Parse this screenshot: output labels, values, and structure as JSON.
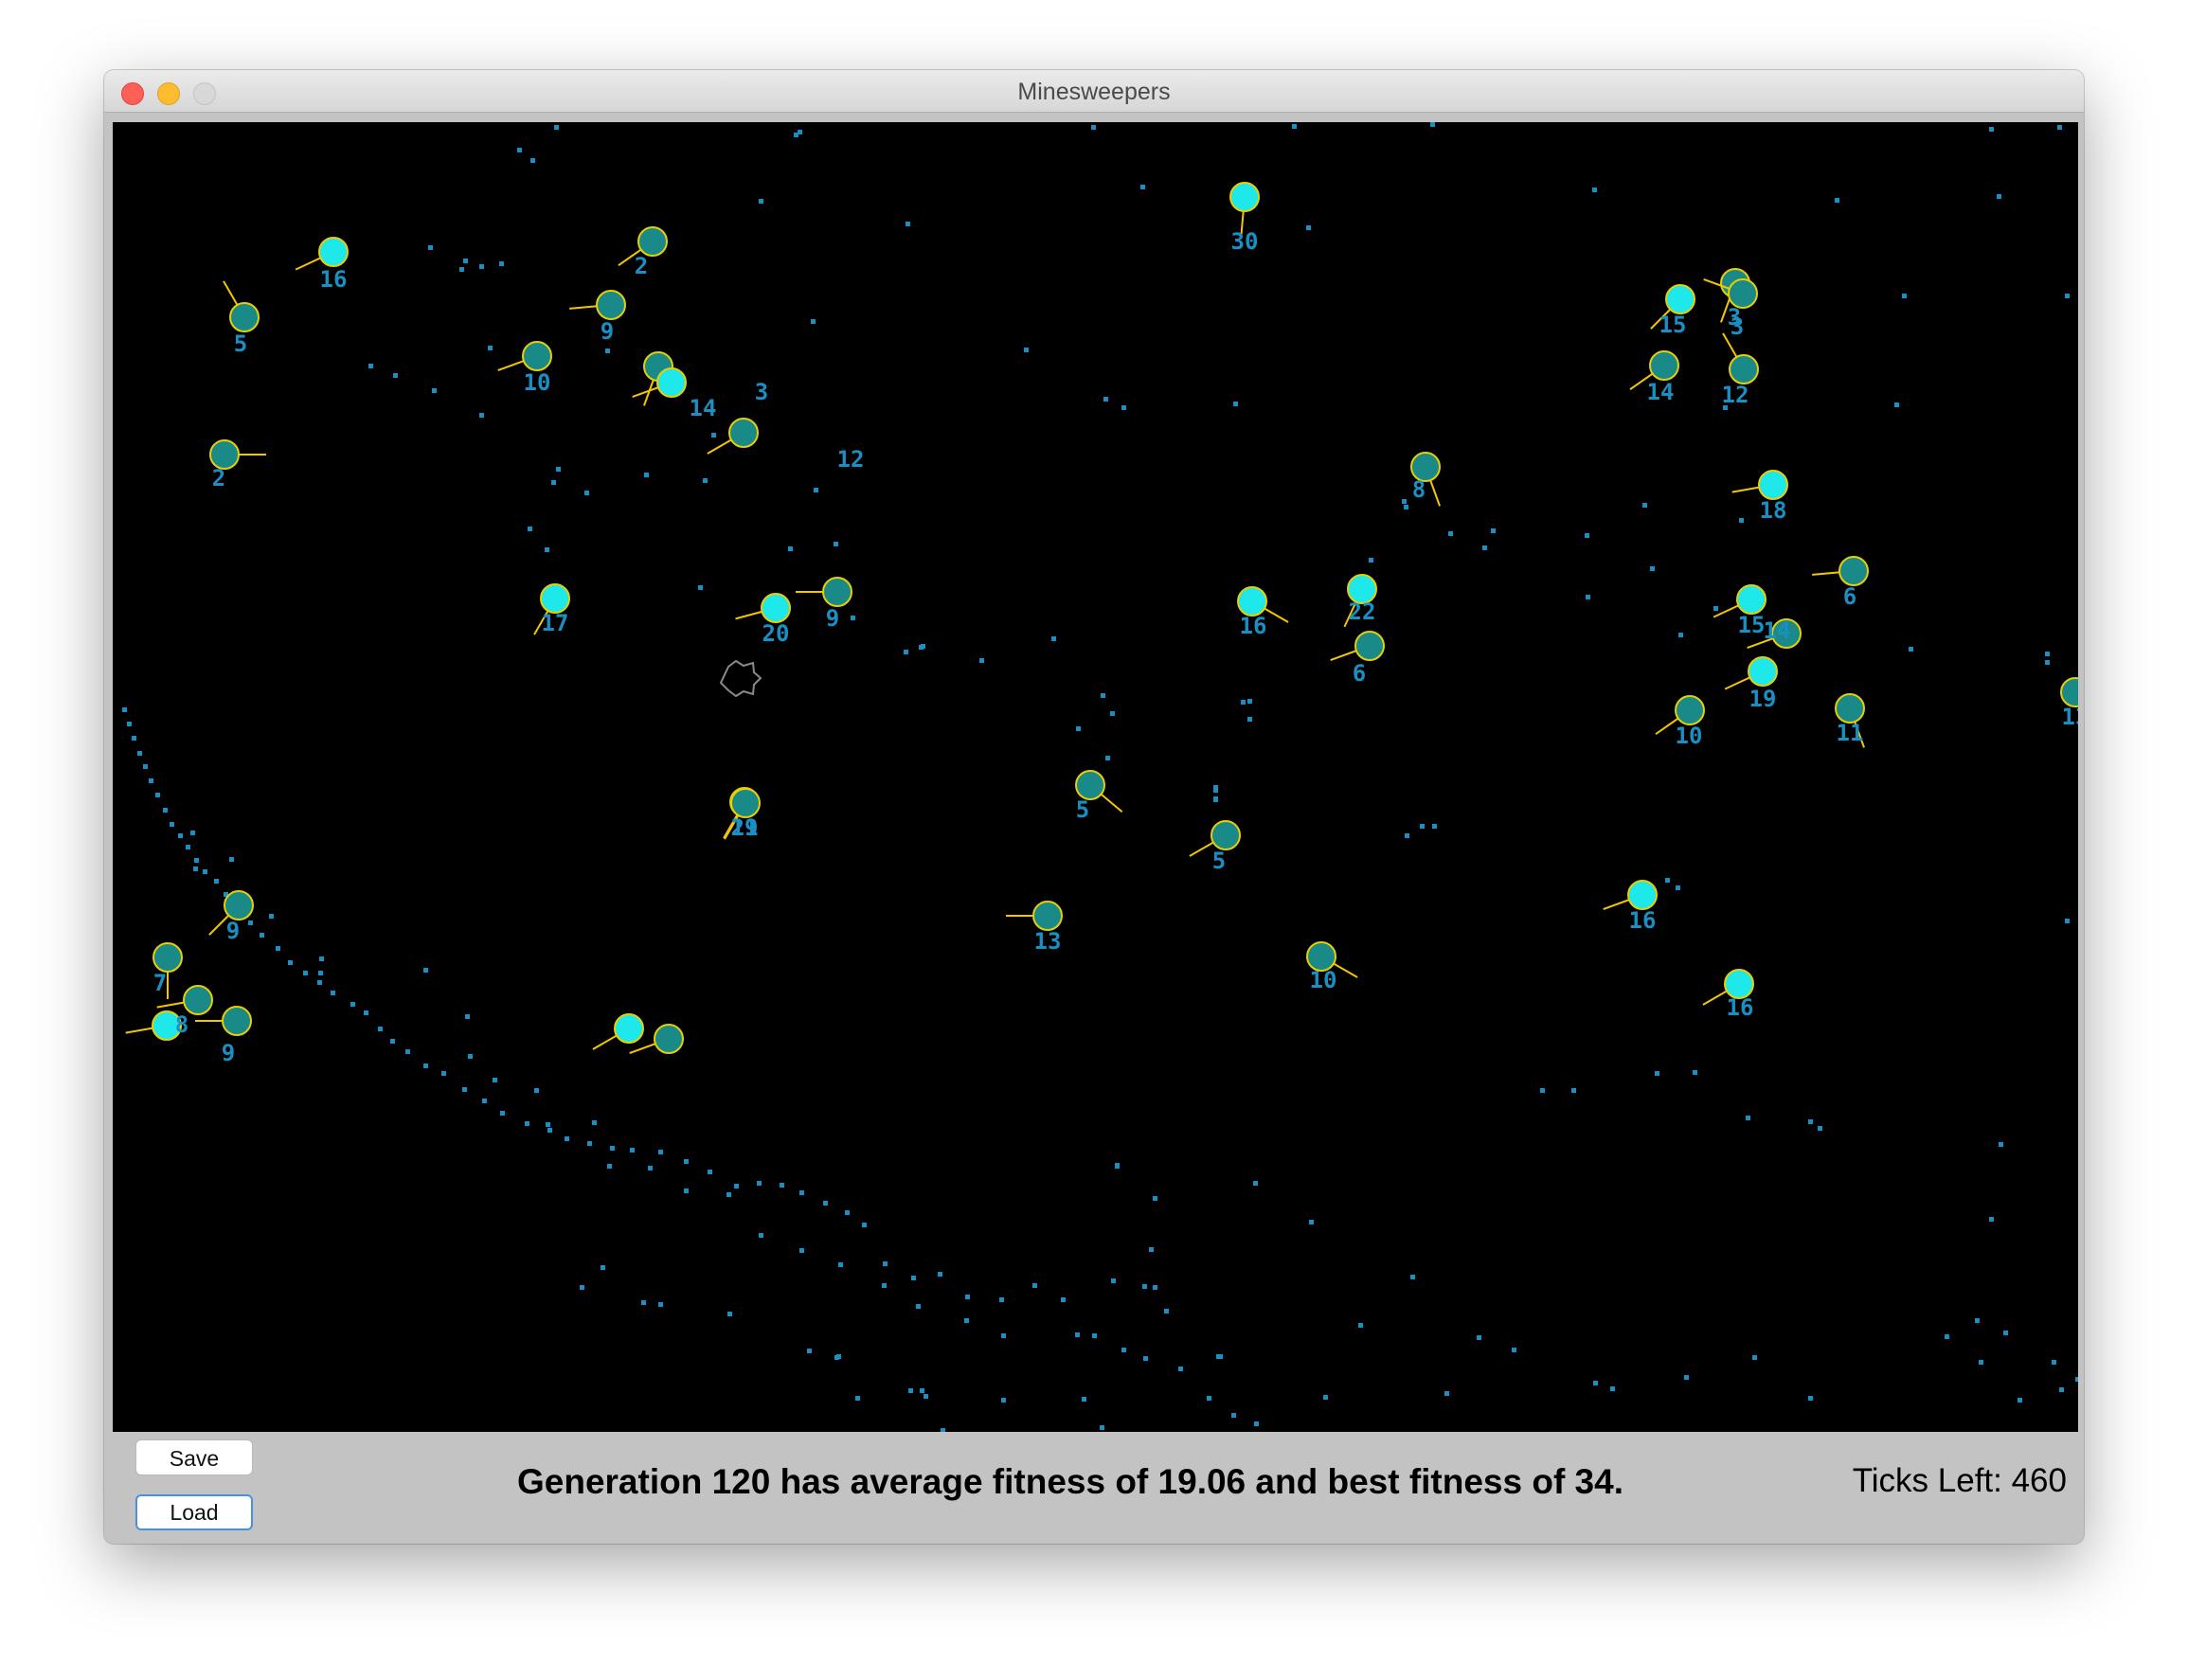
{
  "window": {
    "title": "Minesweepers"
  },
  "controls": {
    "save_label": "Save",
    "load_label": "Load"
  },
  "status": {
    "message": "Generation 120 has average fitness of 19.06 and best fitness of 34.",
    "ticks_label": "Ticks Left: 460"
  },
  "colors": {
    "arena_bg": "#000000",
    "mine": "#1a8fc4",
    "sweeper_bright": "#1ee8ea",
    "sweeper_dim": "#1a8a88",
    "outline": "#e8d000",
    "heading": "#f2c600",
    "label": "#1a8fc4"
  },
  "sweepers": [
    {
      "fitness": "16",
      "bright": true
    },
    {
      "fitness": "2",
      "bright": false
    },
    {
      "fitness": "30",
      "bright": true
    },
    {
      "fitness": "5",
      "bright": false
    },
    {
      "fitness": "9",
      "bright": false
    },
    {
      "fitness": "10",
      "bright": false
    },
    {
      "fitness": "3",
      "bright": false
    },
    {
      "fitness": "14",
      "bright": true
    },
    {
      "fitness": "12",
      "bright": false
    },
    {
      "fitness": "2",
      "bright": false
    },
    {
      "fitness": "15",
      "bright": true
    },
    {
      "fitness": "3",
      "bright": false
    },
    {
      "fitness": "3",
      "bright": false
    },
    {
      "fitness": "14",
      "bright": false
    },
    {
      "fitness": "12",
      "bright": false
    },
    {
      "fitness": "8",
      "bright": false
    },
    {
      "fitness": "18",
      "bright": true
    },
    {
      "fitness": "17",
      "bright": true
    },
    {
      "fitness": "20",
      "bright": true
    },
    {
      "fitness": "9",
      "bright": false
    },
    {
      "fitness": "16",
      "bright": true
    },
    {
      "fitness": "22",
      "bright": true
    },
    {
      "fitness": "6",
      "bright": false
    },
    {
      "fitness": "6",
      "bright": false
    },
    {
      "fitness": "15",
      "bright": true
    },
    {
      "fitness": "14",
      "bright": false
    },
    {
      "fitness": "19",
      "bright": true
    },
    {
      "fitness": "10",
      "bright": false
    },
    {
      "fitness": "11",
      "bright": false
    },
    {
      "fitness": "13",
      "bright": false
    },
    {
      "fitness": "21",
      "bright": false
    },
    {
      "fitness": "19",
      "bright": false
    },
    {
      "fitness": "5",
      "bright": false
    },
    {
      "fitness": "5",
      "bright": false
    },
    {
      "fitness": "9",
      "bright": false
    },
    {
      "fitness": "7",
      "bright": false
    },
    {
      "fitness": "8",
      "bright": true
    },
    {
      "fitness": "9",
      "bright": false
    },
    {
      "fitness": "13",
      "bright": false
    },
    {
      "fitness": "10",
      "bright": false
    },
    {
      "fitness": "16",
      "bright": true
    },
    {
      "fitness": "16",
      "bright": true
    },
    {
      "fitness": "",
      "bright": false
    },
    {
      "fitness": "",
      "bright": true
    },
    {
      "fitness": "",
      "bright": false
    }
  ]
}
